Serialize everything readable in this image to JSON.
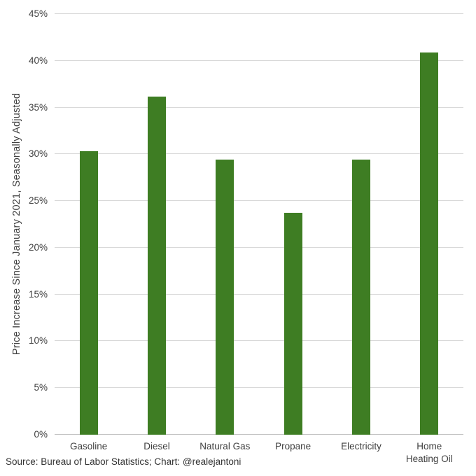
{
  "chart_data": {
    "type": "bar",
    "categories": [
      "Gasoline",
      "Diesel",
      "Natural Gas",
      "Propane",
      "Electricity",
      "Home\nHeating Oil"
    ],
    "values": [
      30.3,
      36.2,
      29.4,
      23.7,
      29.4,
      40.9
    ],
    "title": "",
    "xlabel": "",
    "ylabel": "Price Increase Since January 2021, Seasonally Adjusted",
    "ylim": [
      0,
      45
    ],
    "ytick_step": 5,
    "ytick_suffix": "%",
    "grid": true,
    "legend": "none",
    "bar_color": "#3e7d23",
    "gridline_color": "#d9d9d9"
  },
  "footer": {
    "source_text": "Source: Bureau of Labor Statistics; Chart: @realejantoni"
  }
}
